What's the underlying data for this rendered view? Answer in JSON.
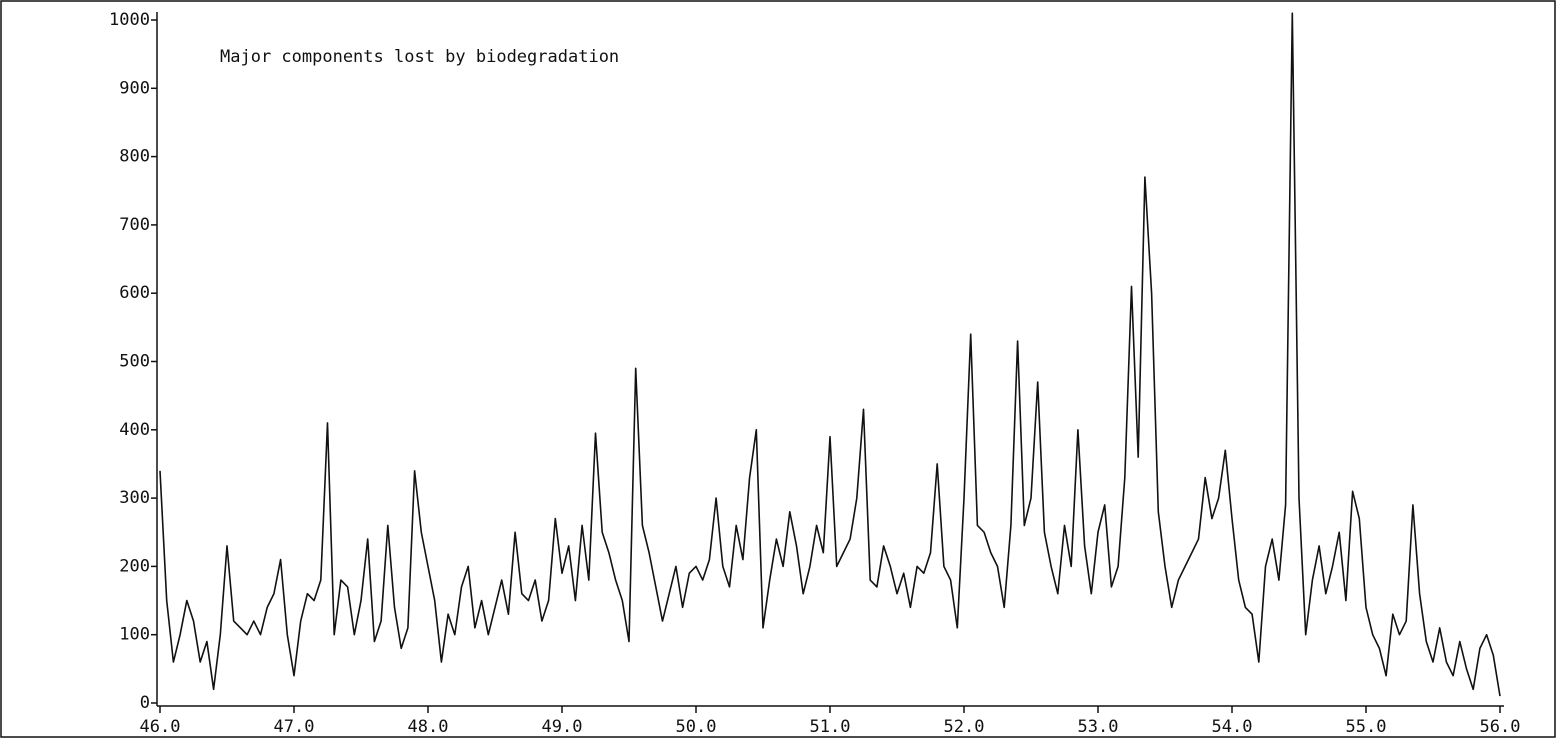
{
  "chart_data": {
    "type": "line",
    "annotations": [
      "Major components lost by biodegradation"
    ],
    "x": [
      46.0,
      46.05,
      46.1,
      46.15,
      46.2,
      46.25,
      46.3,
      46.35,
      46.4,
      46.45,
      46.5,
      46.55,
      46.6,
      46.65,
      46.7,
      46.75,
      46.8,
      46.85,
      46.9,
      46.95,
      47.0,
      47.05,
      47.1,
      47.15,
      47.2,
      47.25,
      47.3,
      47.35,
      47.4,
      47.45,
      47.5,
      47.55,
      47.6,
      47.65,
      47.7,
      47.75,
      47.8,
      47.85,
      47.9,
      47.95,
      48.0,
      48.05,
      48.1,
      48.15,
      48.2,
      48.25,
      48.3,
      48.35,
      48.4,
      48.45,
      48.5,
      48.55,
      48.6,
      48.65,
      48.7,
      48.75,
      48.8,
      48.85,
      48.9,
      48.95,
      49.0,
      49.05,
      49.1,
      49.15,
      49.2,
      49.25,
      49.3,
      49.35,
      49.4,
      49.45,
      49.5,
      49.55,
      49.6,
      49.65,
      49.7,
      49.75,
      49.8,
      49.85,
      49.9,
      49.95,
      50.0,
      50.05,
      50.1,
      50.15,
      50.2,
      50.25,
      50.3,
      50.35,
      50.4,
      50.45,
      50.5,
      50.55,
      50.6,
      50.65,
      50.7,
      50.75,
      50.8,
      50.85,
      50.9,
      50.95,
      51.0,
      51.05,
      51.1,
      51.15,
      51.2,
      51.25,
      51.3,
      51.35,
      51.4,
      51.45,
      51.5,
      51.55,
      51.6,
      51.65,
      51.7,
      51.75,
      51.8,
      51.85,
      51.9,
      51.95,
      52.0,
      52.05,
      52.1,
      52.15,
      52.2,
      52.25,
      52.3,
      52.35,
      52.4,
      52.45,
      52.5,
      52.55,
      52.6,
      52.65,
      52.7,
      52.75,
      52.8,
      52.85,
      52.9,
      52.95,
      53.0,
      53.05,
      53.1,
      53.15,
      53.2,
      53.25,
      53.3,
      53.35,
      53.4,
      53.45,
      53.5,
      53.55,
      53.6,
      53.65,
      53.7,
      53.75,
      53.8,
      53.85,
      53.9,
      53.95,
      54.0,
      54.05,
      54.1,
      54.15,
      54.2,
      54.25,
      54.3,
      54.35,
      54.4,
      54.45,
      54.5,
      54.55,
      54.6,
      54.65,
      54.7,
      54.75,
      54.8,
      54.85,
      54.9,
      54.95,
      55.0,
      55.05,
      55.1,
      55.15,
      55.2,
      55.25,
      55.3,
      55.35,
      55.4,
      55.45,
      55.5,
      55.55,
      55.6,
      55.65,
      55.7,
      55.75,
      55.8,
      55.85,
      55.9,
      55.95,
      56.0
    ],
    "series": [
      {
        "color": "#111111",
        "values": [
          340,
          150,
          60,
          100,
          150,
          120,
          60,
          90,
          20,
          100,
          230,
          120,
          110,
          100,
          120,
          100,
          140,
          160,
          210,
          100,
          40,
          120,
          160,
          150,
          180,
          410,
          100,
          180,
          170,
          100,
          150,
          240,
          90,
          120,
          260,
          140,
          80,
          110,
          340,
          250,
          200,
          150,
          60,
          130,
          100,
          170,
          200,
          110,
          150,
          100,
          140,
          180,
          130,
          250,
          160,
          150,
          180,
          120,
          150,
          270,
          190,
          230,
          150,
          260,
          180,
          395,
          250,
          220,
          180,
          150,
          90,
          490,
          260,
          220,
          170,
          120,
          160,
          200,
          140,
          190,
          200,
          180,
          210,
          300,
          200,
          170,
          260,
          210,
          330,
          400,
          110,
          180,
          240,
          200,
          280,
          230,
          160,
          200,
          260,
          220,
          390,
          200,
          220,
          240,
          300,
          430,
          180,
          170,
          230,
          200,
          160,
          190,
          140,
          200,
          190,
          220,
          350,
          200,
          180,
          110,
          300,
          540,
          260,
          250,
          220,
          200,
          140,
          260,
          530,
          260,
          300,
          470,
          250,
          200,
          160,
          260,
          200,
          400,
          230,
          160,
          250,
          290,
          170,
          200,
          330,
          610,
          360,
          770,
          600,
          280,
          200,
          140,
          180,
          200,
          220,
          240,
          330,
          270,
          300,
          370,
          270,
          180,
          140,
          130,
          60,
          200,
          240,
          180,
          290,
          1010,
          300,
          100,
          180,
          230,
          160,
          200,
          250,
          150,
          310,
          270,
          140,
          100,
          80,
          40,
          130,
          100,
          120,
          290,
          160,
          90,
          60,
          110,
          60,
          40,
          90,
          50,
          20,
          80,
          100,
          70,
          10
        ]
      }
    ],
    "xlim": [
      46,
      56
    ],
    "ylim": [
      0,
      1000
    ],
    "xticks": [
      {
        "value": 46,
        "label": "46.0"
      },
      {
        "value": 47,
        "label": "47.0"
      },
      {
        "value": 48,
        "label": "48.0"
      },
      {
        "value": 49,
        "label": "49.0"
      },
      {
        "value": 50,
        "label": "50.0"
      },
      {
        "value": 51,
        "label": "51.0"
      },
      {
        "value": 52,
        "label": "52.0"
      },
      {
        "value": 53,
        "label": "53.0"
      },
      {
        "value": 54,
        "label": "54.0"
      },
      {
        "value": 55,
        "label": "55.0"
      },
      {
        "value": 56,
        "label": "56.0"
      }
    ],
    "yticks": [
      0,
      100,
      200,
      300,
      400,
      500,
      600,
      700,
      800,
      900,
      1000
    ],
    "grid": false
  }
}
